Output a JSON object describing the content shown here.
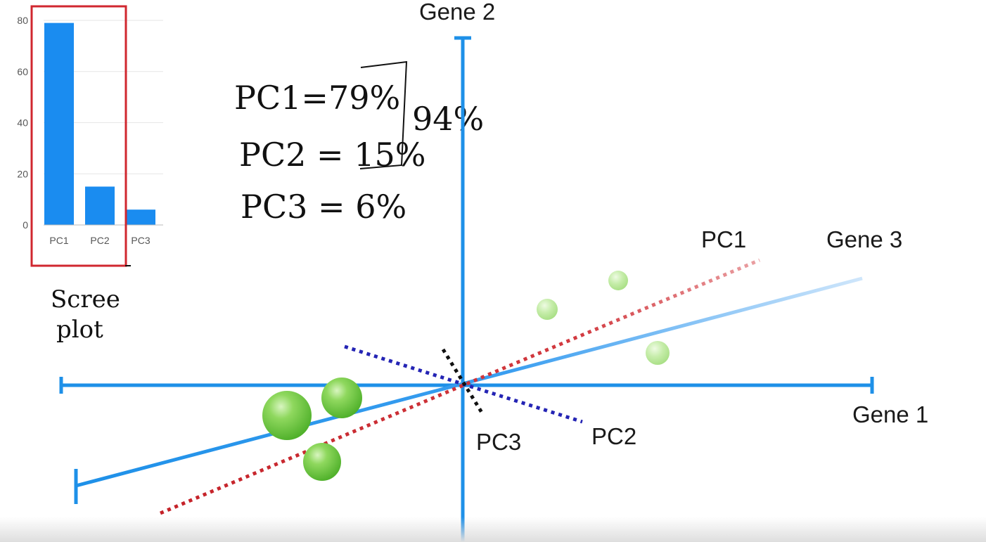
{
  "scree_plot": {
    "label_line1": "Scree",
    "label_line2": "plot",
    "highlight_color": "#d0272f"
  },
  "chart_data": {
    "type": "bar",
    "categories": [
      "PC1",
      "PC2",
      "PC3"
    ],
    "values": [
      79,
      15,
      6
    ],
    "yticks": [
      0,
      20,
      40,
      60,
      80
    ],
    "ylim": [
      0,
      80
    ],
    "bar_color": "#1a8cf0",
    "grid": true
  },
  "annotations": {
    "pc1": "PC1=79%",
    "pc2": "PC2 = 15%",
    "pc3": "PC3 = 6%",
    "total": "94%"
  },
  "plot": {
    "axes": {
      "gene1": "Gene 1",
      "gene2": "Gene 2",
      "gene3": "Gene 3"
    },
    "components": {
      "pc1": "PC1",
      "pc2": "PC2",
      "pc3": "PC3"
    },
    "colors": {
      "axis": "#1e90e8",
      "pc1": "#d0272f",
      "pc2": "#2424b4",
      "pc3": "#111111",
      "points": "#66cc33"
    }
  }
}
